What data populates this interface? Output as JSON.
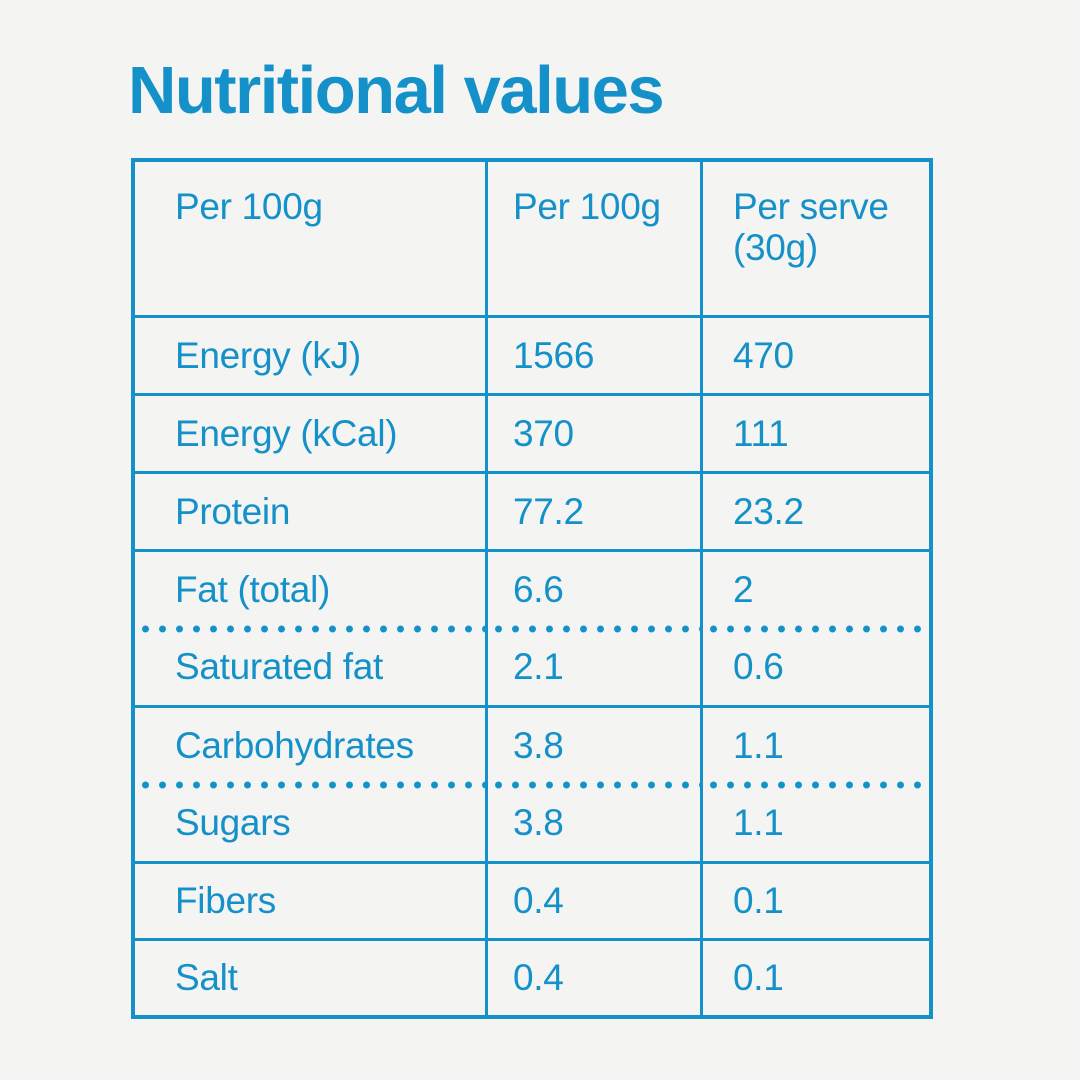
{
  "colors": {
    "accent": "#1491c9",
    "background": "#f4f4f2"
  },
  "title": "Nutritional values",
  "table": {
    "col_headers": [
      "Per 100g",
      "Per 100g",
      "Per serve (30g)"
    ],
    "rows": [
      {
        "label": "Energy (kJ)",
        "per_100g": "1566",
        "per_serve": "470"
      },
      {
        "label": "Energy (kCal)",
        "per_100g": "370",
        "per_serve": "111"
      },
      {
        "label": "Protein",
        "per_100g": "77.2",
        "per_serve": "23.2"
      },
      {
        "items": [
          {
            "label": "Fat (total)",
            "per_100g": "6.6",
            "per_serve": "2"
          },
          {
            "label": "Saturated fat",
            "per_100g": "2.1",
            "per_serve": "0.6"
          }
        ]
      },
      {
        "items": [
          {
            "label": "Carbohydrates",
            "per_100g": "3.8",
            "per_serve": "1.1"
          },
          {
            "label": "Sugars",
            "per_100g": "3.8",
            "per_serve": "1.1"
          }
        ]
      },
      {
        "label": "Fibers",
        "per_100g": "0.4",
        "per_serve": "0.1"
      },
      {
        "label": "Salt",
        "per_100g": "0.4",
        "per_serve": "0.1"
      }
    ]
  },
  "chart_data": {
    "type": "table",
    "title": "Nutritional values",
    "columns": [
      "Per 100g",
      "Per 100g",
      "Per serve (30g)"
    ],
    "rows": [
      [
        "Energy (kJ)",
        1566,
        470
      ],
      [
        "Energy (kCal)",
        370,
        111
      ],
      [
        "Protein",
        77.2,
        23.2
      ],
      [
        "Fat (total)",
        6.6,
        2
      ],
      [
        "Saturated fat",
        2.1,
        0.6
      ],
      [
        "Carbohydrates",
        3.8,
        1.1
      ],
      [
        "Sugars",
        3.8,
        1.1
      ],
      [
        "Fibers",
        0.4,
        0.1
      ],
      [
        "Salt",
        0.4,
        0.1
      ]
    ],
    "layout_hints": {
      "grouped_rows_dotted": [
        [
          "Fat (total)",
          "Saturated fat"
        ],
        [
          "Carbohydrates",
          "Sugars"
        ]
      ]
    }
  }
}
